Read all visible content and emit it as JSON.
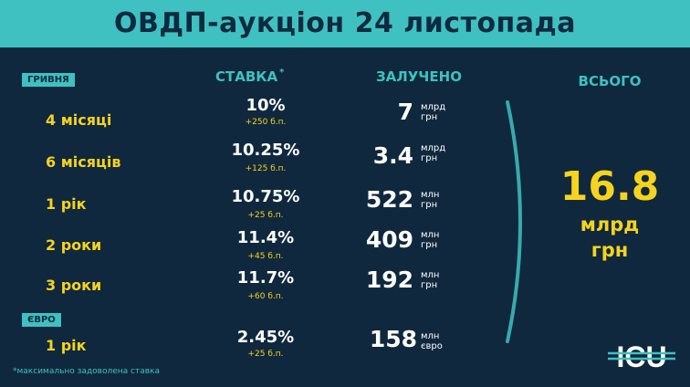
{
  "header": {
    "title": "ОВДП-аукціон 24 листопада"
  },
  "sections": {
    "uah": "ГРИВНЯ",
    "eur": "ЄВРО"
  },
  "columns": {
    "rate": "СТАВКА",
    "rate_mark": "*",
    "raised": "ЗАЛУЧЕНО",
    "total": "ВСЬОГО"
  },
  "rows": [
    {
      "term": "4 місяці",
      "rate": "10%",
      "delta": "+250 б.п.",
      "amount": "7",
      "unit1": "млрд",
      "unit2": "грн"
    },
    {
      "term": "6 місяців",
      "rate": "10.25%",
      "delta": "+125 б.п.",
      "amount": "3.4",
      "unit1": "млрд",
      "unit2": "грн"
    },
    {
      "term": "1 рік",
      "rate": "10.75%",
      "delta": "+25 б.п.",
      "amount": "522",
      "unit1": "млн",
      "unit2": "грн"
    },
    {
      "term": "2 роки",
      "rate": "11.4%",
      "delta": "+45 б.п.",
      "amount": "409",
      "unit1": "млн",
      "unit2": "грн"
    },
    {
      "term": "3 роки",
      "rate": "11.7%",
      "delta": "+60 б.п.",
      "amount": "192",
      "unit1": "млн",
      "unit2": "грн"
    },
    {
      "term": "1 рік",
      "rate": "2.45%",
      "delta": "+25 б.п.",
      "amount": "158",
      "unit1": "млн",
      "unit2": "євро"
    }
  ],
  "total": {
    "value": "16.8",
    "unit1": "млрд",
    "unit2": "грн"
  },
  "footnote": "*максимально задоволена ставка",
  "logo": {
    "text": "ICU"
  },
  "colors": {
    "background": "#10283d",
    "accent": "#3ec1c0",
    "highlight": "#f6d31e",
    "text": "#ffffff"
  }
}
